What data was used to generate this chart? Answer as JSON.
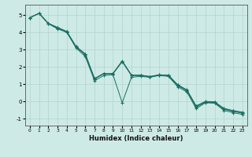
{
  "xlabel": "Humidex (Indice chaleur)",
  "xlim": [
    -0.5,
    23.5
  ],
  "ylim": [
    -1.4,
    5.6
  ],
  "xticks": [
    0,
    1,
    2,
    3,
    4,
    5,
    6,
    7,
    8,
    9,
    10,
    11,
    12,
    13,
    14,
    15,
    16,
    17,
    18,
    19,
    20,
    21,
    22,
    23
  ],
  "yticks": [
    -1,
    0,
    1,
    2,
    3,
    4,
    5
  ],
  "background_color": "#ceeae6",
  "grid_color": "#b0d4cf",
  "line_color": "#1a6e62",
  "line1_x": [
    0,
    1,
    2,
    3,
    4,
    5,
    6,
    7,
    8,
    9,
    10,
    11,
    12,
    13,
    14,
    15,
    16,
    17,
    18,
    19,
    20,
    21,
    22,
    23
  ],
  "line1_y": [
    4.85,
    5.1,
    4.5,
    4.2,
    4.0,
    3.1,
    2.6,
    1.2,
    1.5,
    1.55,
    -0.08,
    1.4,
    1.45,
    1.4,
    1.5,
    1.45,
    0.85,
    0.55,
    -0.42,
    -0.08,
    -0.1,
    -0.52,
    -0.65,
    -0.75
  ],
  "line2_x": [
    0,
    1,
    2,
    3,
    4,
    5,
    6,
    7,
    8,
    9,
    10,
    11,
    12,
    13,
    14,
    15,
    16,
    17,
    18,
    19,
    20,
    21,
    22,
    23
  ],
  "line2_y": [
    4.85,
    5.1,
    4.52,
    4.25,
    4.02,
    3.15,
    2.7,
    1.3,
    1.6,
    1.6,
    2.3,
    1.5,
    1.5,
    1.42,
    1.52,
    1.5,
    0.92,
    0.62,
    -0.32,
    -0.05,
    -0.07,
    -0.45,
    -0.58,
    -0.68
  ],
  "line3_x": [
    0,
    1,
    2,
    3,
    4,
    5,
    6,
    7,
    8,
    9,
    10,
    11,
    12,
    13,
    14,
    15,
    16,
    17,
    18,
    19,
    20,
    21,
    22,
    23
  ],
  "line3_y": [
    4.85,
    5.1,
    4.52,
    4.28,
    4.05,
    3.18,
    2.75,
    1.32,
    1.62,
    1.62,
    2.32,
    1.52,
    1.52,
    1.44,
    1.54,
    1.52,
    0.95,
    0.65,
    -0.28,
    -0.02,
    -0.04,
    -0.42,
    -0.55,
    -0.65
  ],
  "line4_x": [
    0,
    1,
    2,
    3,
    4,
    5,
    6,
    7,
    8,
    9,
    10,
    11,
    12,
    13,
    14,
    15,
    16,
    17,
    18,
    19,
    20,
    21,
    22,
    23
  ],
  "line4_y": [
    4.85,
    5.1,
    4.52,
    4.28,
    4.05,
    3.18,
    2.75,
    1.32,
    1.62,
    1.62,
    2.35,
    1.52,
    1.52,
    1.44,
    1.54,
    1.52,
    0.97,
    0.67,
    -0.26,
    0.0,
    -0.02,
    -0.4,
    -0.53,
    -0.62
  ]
}
